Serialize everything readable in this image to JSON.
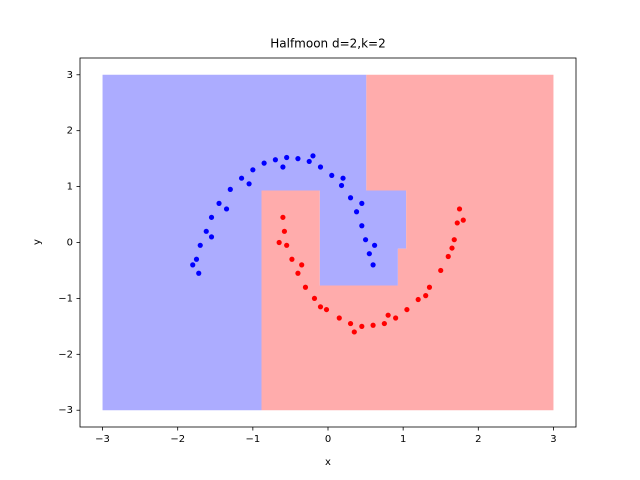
{
  "chart_data": {
    "type": "scatter",
    "title": "Halfmoon d=2,k=2",
    "x_label": "x",
    "y_label": "y",
    "xlim": [
      -3.3,
      3.3
    ],
    "ylim": [
      -3.3,
      3.3
    ],
    "xticks": [
      {
        "value": -3,
        "label": "−3"
      },
      {
        "value": -2,
        "label": "−2"
      },
      {
        "value": -1,
        "label": "−1"
      },
      0,
      1,
      2,
      3
    ],
    "yticks": [
      {
        "value": -3,
        "label": "−3"
      },
      {
        "value": -2,
        "label": "−2"
      },
      {
        "value": -1,
        "label": "−1"
      },
      0,
      1,
      2,
      3
    ],
    "regions": [
      {
        "color": "#a8a8ff",
        "x": [
          -3,
          0.51,
          0.51,
          1.04,
          1.04,
          0.93,
          0.93,
          -0.11,
          -0.11,
          -0.885,
          -0.885,
          -3
        ],
        "y": [
          3,
          3,
          0.93,
          0.93,
          -0.11,
          -0.11,
          -0.77,
          -0.77,
          0.93,
          0.93,
          -3,
          -3
        ]
      },
      {
        "color": "#ffa8a8",
        "x": [
          0.51,
          3,
          3,
          -0.885,
          -0.885,
          -0.11,
          -0.11,
          0.93,
          0.93,
          1.04,
          1.04,
          0.51
        ],
        "y": [
          3,
          3,
          -3,
          -3,
          0.93,
          0.93,
          -0.77,
          -0.77,
          -0.11,
          -0.11,
          0.93,
          0.93
        ]
      }
    ],
    "series": [
      {
        "color": "#0000ff",
        "x": [
          -1.72,
          -1.75,
          -1.7,
          -1.62,
          -1.55,
          -1.45,
          -1.3,
          -1.15,
          -1.0,
          -0.85,
          -0.7,
          -0.55,
          -0.4,
          -0.25,
          -0.1,
          0.05,
          0.18,
          0.3,
          0.38,
          0.45,
          0.5,
          0.55,
          0.6,
          -1.8,
          -1.55,
          -1.35,
          -1.05,
          -0.6,
          -0.2,
          0.2,
          0.45,
          0.62
        ],
        "values": [
          -0.55,
          -0.3,
          -0.05,
          0.2,
          0.45,
          0.7,
          0.95,
          1.15,
          1.3,
          1.42,
          1.48,
          1.52,
          1.5,
          1.45,
          1.35,
          1.2,
          1.02,
          0.8,
          0.55,
          0.3,
          0.05,
          -0.2,
          -0.4,
          -0.4,
          0.1,
          0.6,
          1.05,
          1.35,
          1.55,
          1.15,
          0.7,
          -0.05
        ]
      },
      {
        "color": "#ff0000",
        "x": [
          -0.6,
          -0.58,
          -0.55,
          -0.48,
          -0.4,
          -0.3,
          -0.18,
          -0.02,
          0.15,
          0.3,
          0.45,
          0.6,
          0.75,
          0.9,
          1.05,
          1.2,
          1.35,
          1.5,
          1.6,
          1.68,
          1.72,
          1.75,
          -0.65,
          -0.35,
          -0.1,
          0.35,
          0.8,
          1.3,
          1.65,
          1.8
        ],
        "values": [
          0.45,
          0.2,
          -0.05,
          -0.3,
          -0.55,
          -0.8,
          -1.0,
          -1.2,
          -1.35,
          -1.45,
          -1.5,
          -1.48,
          -1.45,
          -1.35,
          -1.2,
          -1.02,
          -0.8,
          -0.5,
          -0.25,
          0.05,
          0.35,
          0.6,
          0.0,
          -0.4,
          -1.15,
          -1.6,
          -1.3,
          -0.95,
          -0.1,
          0.4
        ]
      }
    ]
  }
}
